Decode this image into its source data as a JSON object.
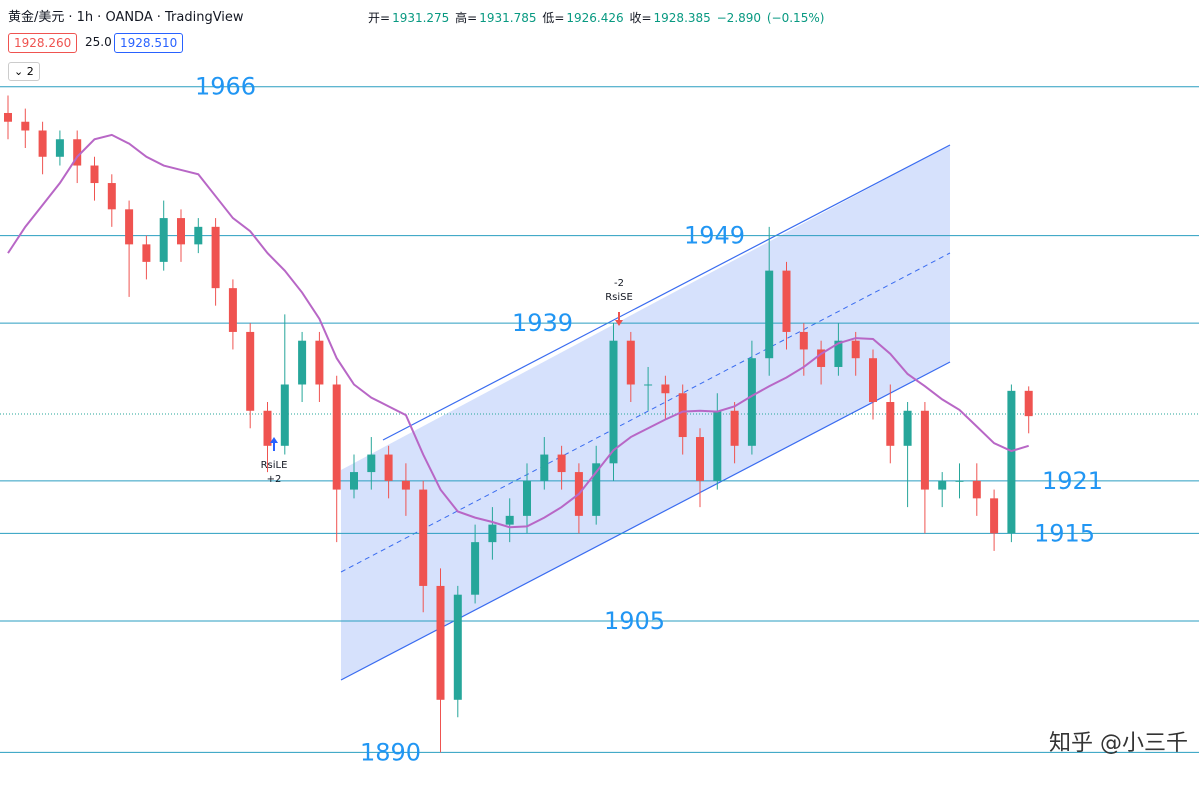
{
  "header": {
    "symbol": "黄金/美元",
    "interval": "1h",
    "broker": "OANDA",
    "platform": "TradingView",
    "bid": "1928.260",
    "spread": "25.0",
    "ask": "1928.510",
    "open_label": "开=",
    "high_label": "高=",
    "low_label": "低=",
    "close_label": "收=",
    "change": "−2.890",
    "change_pct": "(−0.15%)",
    "indicator_count": "2"
  },
  "chart_data": {
    "type": "candlestick",
    "ylim": [
      1885.7,
      1975.9
    ],
    "open": [
      1963,
      1962,
      1961,
      1958,
      1960,
      1957,
      1955,
      1952,
      1948,
      1946,
      1951,
      1948,
      1950,
      1943,
      1938,
      1929,
      1925,
      1932,
      1937,
      1932,
      1920,
      1922,
      1924,
      1921,
      1920,
      1909,
      1896,
      1908,
      1914,
      1916,
      1917,
      1921,
      1924,
      1922,
      1917,
      1923,
      1937,
      1932,
      1932,
      1931,
      1926,
      1921,
      1929,
      1925,
      1935,
      1945,
      1938,
      1936,
      1934,
      1937,
      1935,
      1930,
      1925,
      1929,
      1920,
      1921,
      1921,
      1919,
      1915,
      1931.275
    ],
    "high": [
      1965,
      1963.5,
      1962,
      1961,
      1961,
      1958,
      1956,
      1953,
      1949,
      1953,
      1952,
      1951,
      1951,
      1944,
      1939,
      1930,
      1940,
      1938,
      1938,
      1933,
      1924,
      1926,
      1925,
      1923,
      1921,
      1911,
      1909,
      1916,
      1918,
      1919,
      1923,
      1926,
      1925,
      1923,
      1925,
      1939,
      1938,
      1934,
      1933,
      1932,
      1927,
      1931,
      1930,
      1937,
      1950,
      1946,
      1939,
      1937,
      1939,
      1938,
      1936,
      1932,
      1930,
      1930,
      1922,
      1923,
      1923,
      1920,
      1932,
      1931.785
    ],
    "low": [
      1960,
      1959,
      1956,
      1957,
      1955,
      1953,
      1950,
      1942,
      1944,
      1945,
      1946,
      1947,
      1941,
      1936,
      1927,
      1922,
      1924,
      1930,
      1930,
      1914,
      1919,
      1920,
      1919,
      1917,
      1906,
      1890,
      1894,
      1907,
      1912,
      1914,
      1915,
      1920,
      1920,
      1915,
      1916,
      1921,
      1930,
      1929,
      1928,
      1924,
      1918,
      1920,
      1923,
      1924,
      1933,
      1936,
      1933,
      1932,
      1933,
      1933,
      1928,
      1923,
      1918,
      1915,
      1918,
      1919,
      1917,
      1913,
      1914,
      1926.426
    ],
    "close": [
      1962,
      1961,
      1958,
      1960,
      1957,
      1955,
      1952,
      1948,
      1946,
      1951,
      1948,
      1950,
      1943,
      1938,
      1929,
      1925,
      1932,
      1937,
      1932,
      1920,
      1922,
      1924,
      1921,
      1920,
      1909,
      1896,
      1908,
      1914,
      1916,
      1917,
      1921,
      1924,
      1922,
      1917,
      1923,
      1937,
      1932,
      1932,
      1931,
      1926,
      1921,
      1929,
      1925,
      1935,
      1945,
      1938,
      1936,
      1934,
      1937,
      1935,
      1930,
      1925,
      1929,
      1920,
      1921,
      1921,
      1919,
      1915,
      1931.275,
      1928.385
    ],
    "ma": [
      1947,
      1950,
      1952.5,
      1955,
      1958,
      1960,
      1960.5,
      1959.5,
      1958,
      1957,
      1956.5,
      1956,
      1953.5,
      1951,
      1949.5,
      1947,
      1945,
      1942.5,
      1939.5,
      1935,
      1932,
      1930.5,
      1929.5,
      1928.5,
      1924,
      1920,
      1917.5,
      1916.8,
      1916.3,
      1915.7,
      1915.8,
      1916.8,
      1918,
      1919.5,
      1922,
      1924.5,
      1926,
      1927,
      1928,
      1928.9,
      1929,
      1928.9,
      1929.5,
      1930.7,
      1931.8,
      1932.8,
      1934,
      1935.5,
      1936.7,
      1937.3,
      1937.2,
      1935.5,
      1933.2,
      1931.8,
      1930.3,
      1929.1,
      1927.2,
      1925.3,
      1924.4,
      1925
    ],
    "up_color": "#26a69a",
    "down_color": "#ef5350",
    "ma_color": "#b867c6",
    "levels": [
      1966,
      1949,
      1939,
      1921,
      1915,
      1905,
      1890
    ],
    "annotations": [
      {
        "signal": "RsiLE",
        "qty": "+2"
      },
      {
        "signal": "RsiSE",
        "qty": "-2"
      }
    ],
    "watermark": "知乎 @小三千"
  }
}
